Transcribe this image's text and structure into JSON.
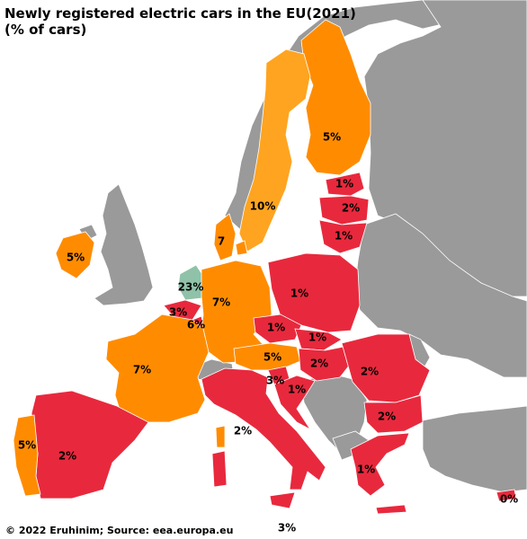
{
  "title_line1": "Newly registered electric cars in the EU(2021)",
  "title_line2": "(% of cars)",
  "credit": "© 2022 Eruhinim; Source: eea.europa.eu",
  "colors": {
    "sea": "#ffffff",
    "non_eu": "#9a9a9a",
    "low": "#e8293d",
    "mid": "#ff8c00",
    "mid_light": "#ffa420",
    "high": "#8fc2a8"
  },
  "labels": {
    "finland": "5%",
    "sweden": "10%",
    "denmark": "7",
    "estonia": "1%",
    "latvia": "2%",
    "lithuania": "1%",
    "ireland": "5%",
    "netherlands": "23%",
    "belgium": "3%",
    "luxembourg": "6%",
    "germany": "7%",
    "poland": "1%",
    "czechia": "1%",
    "slovakia": "1%",
    "france": "7%",
    "austria": "5%",
    "hungary": "2%",
    "romania": "2%",
    "slovenia": "3%",
    "croatia": "1%",
    "bulgaria": "2%",
    "italy": "2%",
    "spain": "2%",
    "portugal": "5%",
    "greece": "1%",
    "cyprus": "0%",
    "malta": "3%"
  }
}
